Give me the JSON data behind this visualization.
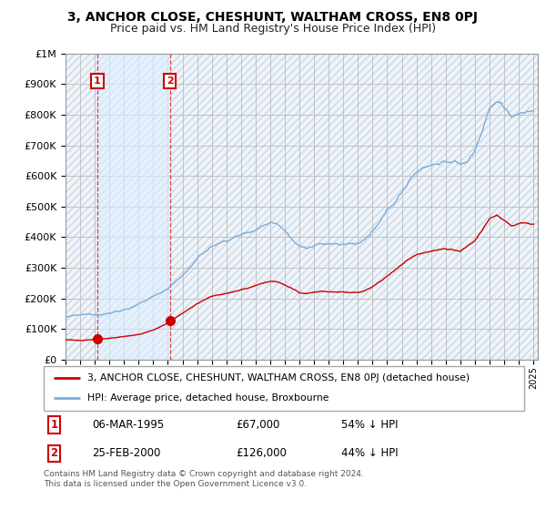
{
  "title": "3, ANCHOR CLOSE, CHESHUNT, WALTHAM CROSS, EN8 0PJ",
  "subtitle": "Price paid vs. HM Land Registry's House Price Index (HPI)",
  "title_fontsize": 10,
  "subtitle_fontsize": 9,
  "hpi_color": "#7aaddc",
  "price_color": "#cc0000",
  "annotation_line_color": "#dd4444",
  "grid_color": "#cccccc",
  "hatch_color": "#dde8f0",
  "shade_color": "#ddeeff",
  "legend_entry1": "3, ANCHOR CLOSE, CHESHUNT, WALTHAM CROSS, EN8 0PJ (detached house)",
  "legend_entry2": "HPI: Average price, detached house, Broxbourne",
  "annotation1_date": "06-MAR-1995",
  "annotation1_price": "£67,000",
  "annotation1_hpi": "54% ↓ HPI",
  "annotation2_date": "25-FEB-2000",
  "annotation2_price": "£126,000",
  "annotation2_hpi": "44% ↓ HPI",
  "footer": "Contains HM Land Registry data © Crown copyright and database right 2024.\nThis data is licensed under the Open Government Licence v3.0.",
  "ylim": [
    0,
    1000000
  ],
  "xlim_start": 1993.0,
  "xlim_end": 2025.3,
  "sale1_x": 1995.17,
  "sale1_y": 67000,
  "sale2_x": 2000.13,
  "sale2_y": 126000
}
